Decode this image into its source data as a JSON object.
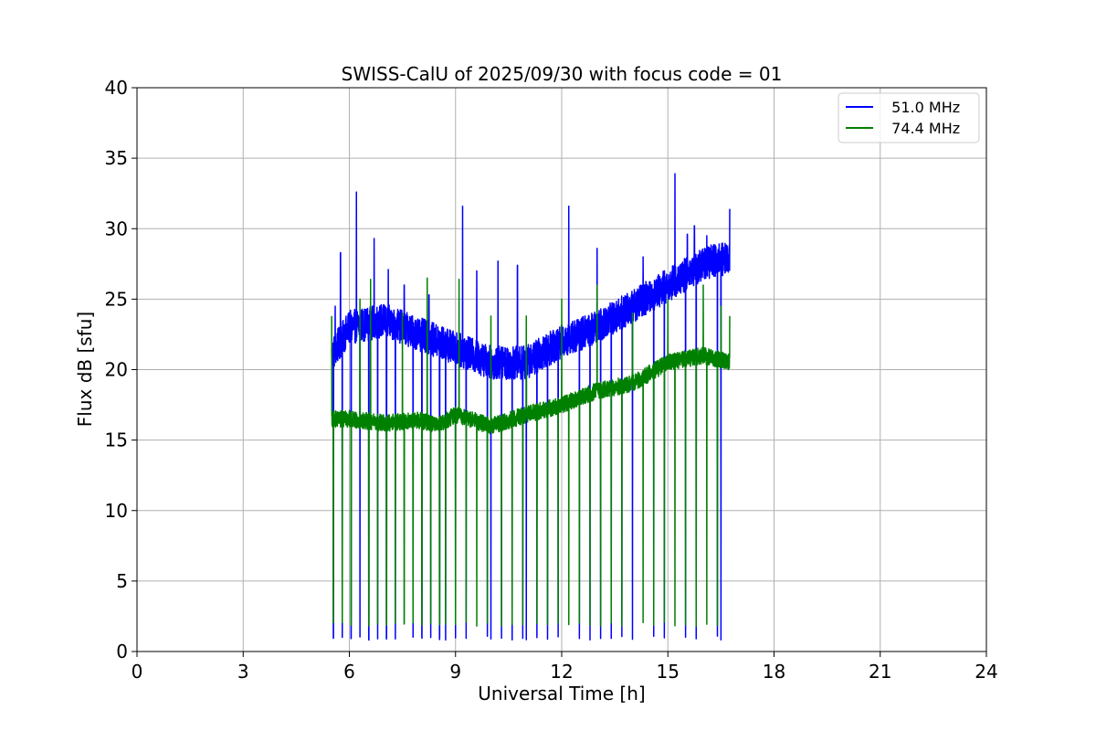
{
  "chart_data": {
    "type": "line",
    "title": "SWISS-CalU of 2025/09/30 with focus code = 01",
    "xlabel": "Universal Time [h]",
    "ylabel": "Flux dB [sfu]",
    "xlim": [
      0,
      24
    ],
    "ylim": [
      0,
      40
    ],
    "xticks": [
      0,
      3,
      6,
      9,
      12,
      15,
      18,
      21,
      24
    ],
    "yticks": [
      0,
      5,
      10,
      15,
      20,
      25,
      30,
      35,
      40
    ],
    "grid": true,
    "legend_position": "top-right",
    "colors": {
      "series_51": "#0000ff",
      "series_74": "#008000",
      "grid": "#b0b0b0",
      "axes": "#000000"
    },
    "series": [
      {
        "name": "51.0 MHz",
        "legend_label": "  51.0 MHz",
        "color": "#0000ff",
        "x_range": [
          5.5,
          16.75
        ],
        "baseline": [
          [
            5.5,
            21.0
          ],
          [
            6.0,
            23.0
          ],
          [
            7.0,
            23.5
          ],
          [
            8.0,
            22.5
          ],
          [
            9.0,
            21.5
          ],
          [
            10.0,
            20.5
          ],
          [
            11.0,
            20.5
          ],
          [
            12.0,
            22.0
          ],
          [
            13.0,
            23.0
          ],
          [
            14.0,
            24.5
          ],
          [
            15.0,
            26.0
          ],
          [
            16.0,
            27.5
          ],
          [
            16.75,
            28.0
          ]
        ],
        "noise_amplitude": 1.2,
        "calibration_dips": [
          5.55,
          5.8,
          6.05,
          6.3,
          6.55,
          6.8,
          7.05,
          7.3,
          7.55,
          7.8,
          8.05,
          8.3,
          8.55,
          8.72,
          9.0,
          9.3,
          9.6,
          9.9,
          10.0,
          10.3,
          10.6,
          10.9,
          11.0,
          11.3,
          11.6,
          11.9,
          12.2,
          12.5,
          12.8,
          13.1,
          13.4,
          13.7,
          14.0,
          14.3,
          14.6,
          14.9,
          15.2,
          15.5,
          15.8,
          16.1,
          16.4,
          16.5
        ],
        "dip_floor": 0.8,
        "spikes": [
          [
            5.6,
            24.5
          ],
          [
            5.75,
            28.3
          ],
          [
            6.2,
            32.6
          ],
          [
            6.7,
            29.3
          ],
          [
            7.1,
            27.1
          ],
          [
            7.55,
            26.0
          ],
          [
            8.25,
            25.3
          ],
          [
            9.2,
            31.6
          ],
          [
            9.6,
            27.0
          ],
          [
            10.2,
            27.7
          ],
          [
            10.75,
            27.4
          ],
          [
            12.2,
            31.6
          ],
          [
            13.0,
            28.6
          ],
          [
            14.3,
            28.0
          ],
          [
            15.2,
            33.9
          ],
          [
            15.55,
            29.6
          ],
          [
            15.75,
            30.2
          ],
          [
            16.1,
            29.5
          ],
          [
            16.75,
            31.4
          ]
        ]
      },
      {
        "name": "74.4 MHz",
        "legend_label": "  74.4 MHz",
        "color": "#008000",
        "x_range": [
          5.5,
          16.75
        ],
        "baseline": [
          [
            5.5,
            16.5
          ],
          [
            6.0,
            16.5
          ],
          [
            7.0,
            16.2
          ],
          [
            8.0,
            16.4
          ],
          [
            8.5,
            16.0
          ],
          [
            9.0,
            16.8
          ],
          [
            10.0,
            16.0
          ],
          [
            11.0,
            16.8
          ],
          [
            12.0,
            17.5
          ],
          [
            13.0,
            18.5
          ],
          [
            14.0,
            19.0
          ],
          [
            15.0,
            20.5
          ],
          [
            16.0,
            21.0
          ],
          [
            16.75,
            20.5
          ]
        ],
        "noise_amplitude": 0.6,
        "calibration_dips": [
          5.55,
          5.8,
          6.05,
          6.3,
          6.55,
          6.8,
          7.05,
          7.3,
          7.55,
          7.8,
          8.05,
          8.3,
          8.55,
          8.72,
          9.0,
          9.3,
          9.6,
          9.9,
          10.0,
          10.3,
          10.6,
          10.9,
          11.0,
          11.3,
          11.6,
          11.9,
          12.2,
          12.5,
          12.8,
          13.1,
          13.4,
          13.7,
          14.0,
          14.3,
          14.6,
          14.9,
          15.2,
          15.5,
          15.8,
          16.1,
          16.4,
          16.5
        ],
        "dip_floor": 1.8,
        "spike_peaks": [
          [
            5.5,
            23.8
          ],
          [
            6.3,
            25.0
          ],
          [
            6.6,
            26.4
          ],
          [
            7.5,
            24.0
          ],
          [
            8.2,
            26.5
          ],
          [
            9.1,
            26.4
          ],
          [
            10.0,
            23.8
          ],
          [
            11.0,
            23.8
          ],
          [
            12.0,
            25.0
          ],
          [
            13.0,
            26.0
          ],
          [
            14.0,
            24.0
          ],
          [
            15.0,
            25.0
          ],
          [
            16.0,
            26.0
          ],
          [
            16.5,
            24.5
          ],
          [
            16.75,
            23.8
          ]
        ]
      }
    ]
  }
}
